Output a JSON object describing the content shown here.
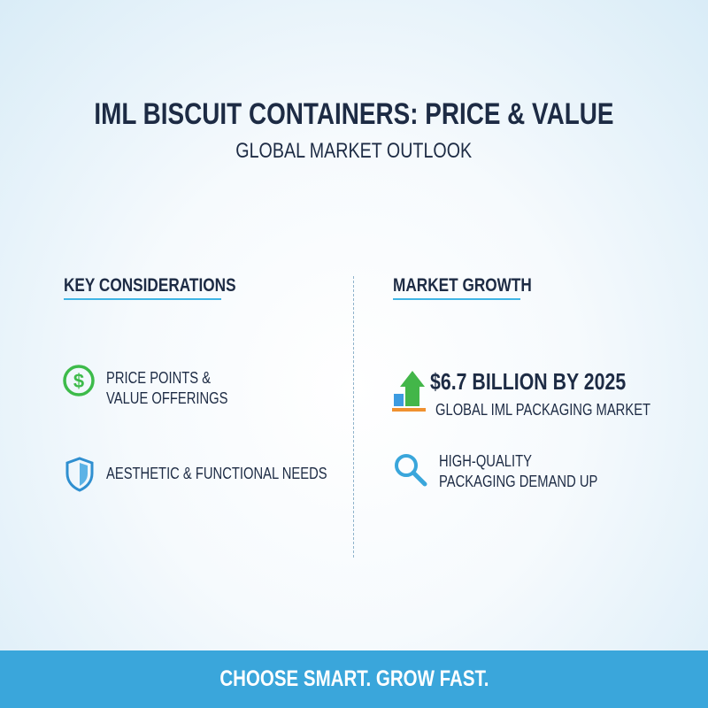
{
  "header": {
    "title": "IML BISCUIT CONTAINERS: PRICE & VALUE",
    "subtitle": "GLOBAL MARKET OUTLOOK"
  },
  "left": {
    "heading": "KEY CONSIDERATIONS",
    "items": [
      {
        "lines": [
          "PRICE POINTS &",
          "VALUE OFFERINGS"
        ]
      },
      {
        "lines": [
          "AESTHETIC & FUNCTIONAL NEEDS"
        ]
      }
    ]
  },
  "right": {
    "heading": "MARKET GROWTH",
    "items": [
      {
        "headline": "$6.7 BILLION BY 2025",
        "detail": "GLOBAL IML PACKAGING MARKET"
      },
      {
        "lines": [
          "HIGH-QUALITY",
          "PACKAGING DEMAND UP"
        ]
      }
    ]
  },
  "footer": {
    "text": "CHOOSE SMART. GROW FAST."
  }
}
